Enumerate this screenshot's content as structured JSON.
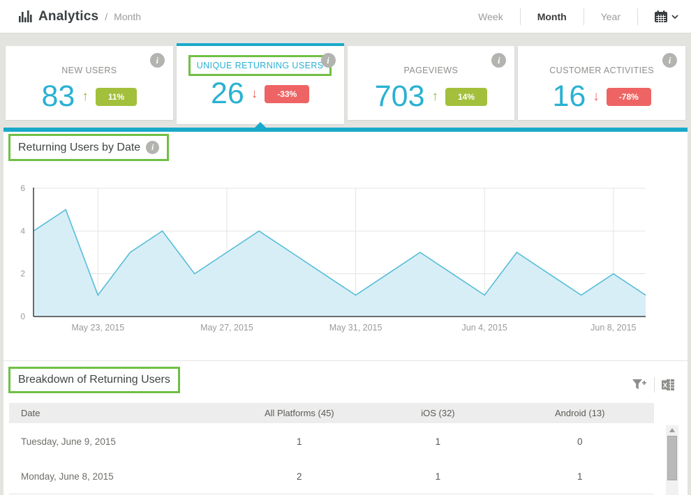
{
  "header": {
    "title": "Analytics",
    "separator": "/",
    "subtitle": "Month",
    "range_tabs": [
      {
        "label": "Week",
        "active": false
      },
      {
        "label": "Month",
        "active": true
      },
      {
        "label": "Year",
        "active": false
      }
    ]
  },
  "cards": [
    {
      "title": "NEW USERS",
      "value": "83",
      "direction": "up",
      "change": "11%",
      "selected": false,
      "annotated": false
    },
    {
      "title": "UNIQUE RETURNING USERS",
      "value": "26",
      "direction": "down",
      "change": "-33%",
      "selected": true,
      "annotated": true
    },
    {
      "title": "PAGEVIEWS",
      "value": "703",
      "direction": "up",
      "change": "14%",
      "selected": false,
      "annotated": false
    },
    {
      "title": "CUSTOMER ACTIVITIES",
      "value": "16",
      "direction": "down",
      "change": "-78%",
      "selected": false,
      "annotated": false
    }
  ],
  "chart_section": {
    "title": "Returning Users by Date"
  },
  "chart_data": {
    "type": "area",
    "title": "Returning Users by Date",
    "x": [
      "May 21, 2015",
      "May 22, 2015",
      "May 23, 2015",
      "May 24, 2015",
      "May 25, 2015",
      "May 26, 2015",
      "May 27, 2015",
      "May 28, 2015",
      "May 29, 2015",
      "May 30, 2015",
      "May 31, 2015",
      "Jun 1, 2015",
      "Jun 2, 2015",
      "Jun 3, 2015",
      "Jun 4, 2015",
      "Jun 5, 2015",
      "Jun 6, 2015",
      "Jun 7, 2015",
      "Jun 8, 2015",
      "Jun 9, 2015"
    ],
    "series": [
      {
        "name": "Returning Users",
        "values": [
          4,
          5,
          1,
          3,
          4,
          2,
          3,
          4,
          3,
          2,
          1,
          2,
          3,
          2,
          1,
          3,
          2,
          1,
          2,
          1
        ]
      }
    ],
    "x_tick_indices": [
      2,
      6,
      10,
      14,
      18
    ],
    "x_tick_labels": [
      "May 23, 2015",
      "May 27, 2015",
      "May 31, 2015",
      "Jun 4, 2015",
      "Jun 8, 2015"
    ],
    "y_ticks": [
      0,
      2,
      4,
      6
    ],
    "ylim": [
      0,
      6
    ],
    "grid": true,
    "legend": "none",
    "xlabel": "",
    "ylabel": ""
  },
  "table_section": {
    "title": "Breakdown of Returning Users",
    "columns": [
      "Date",
      "All Platforms (45)",
      "iOS (32)",
      "Android (13)"
    ],
    "rows": [
      {
        "date": "Tuesday, June 9, 2015",
        "all_platforms": "1",
        "ios": "1",
        "android": "0"
      },
      {
        "date": "Monday, June 8, 2015",
        "all_platforms": "2",
        "ios": "1",
        "android": "1"
      }
    ]
  },
  "colors": {
    "bg": "#e3e3e0",
    "cyan": "#29b1d3",
    "cyan_bar": "#18a9ca",
    "green": "#a2c03c",
    "green_arrow": "#8fbe3f",
    "red": "#ee6464",
    "annotation_green": "#70bf44",
    "chart_fill": "#d8eef7",
    "chart_line": "#56bdd9",
    "grid_line": "#e4e4e4",
    "axis_line": "#3f3f3f",
    "axis_text": "#9a9a97"
  }
}
